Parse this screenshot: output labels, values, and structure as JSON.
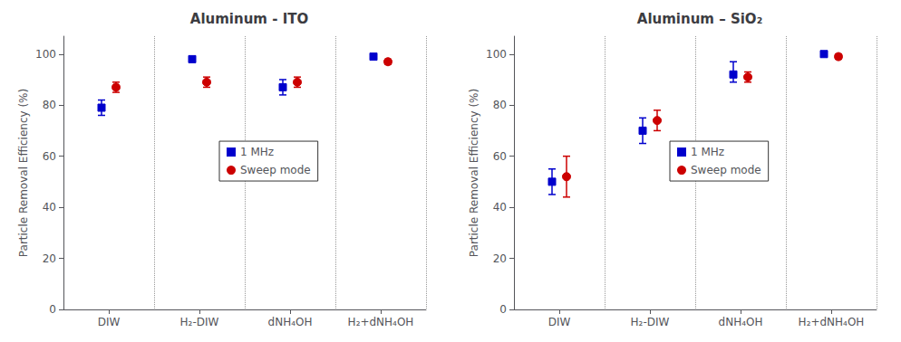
{
  "chart_data": [
    {
      "type": "scatter",
      "title": "Aluminum - ITO",
      "ylabel": "Particle Removal Efficiency (%)",
      "categories": [
        "DIW",
        "H₂-DIW",
        "dNH₄OH",
        "H₂+dNH₄OH"
      ],
      "series": [
        {
          "name": "1 MHz",
          "color": "#0000CC",
          "marker": "square",
          "values": [
            79,
            98,
            87,
            99
          ],
          "yerr_low": [
            3,
            1,
            3,
            0.5
          ],
          "yerr_high": [
            3,
            1,
            3,
            0.5
          ]
        },
        {
          "name": "Sweep mode",
          "color": "#CC0000",
          "marker": "circle",
          "values": [
            87,
            89,
            89,
            97
          ],
          "yerr_low": [
            2,
            2,
            2,
            1
          ],
          "yerr_high": [
            2,
            2,
            2,
            1
          ]
        }
      ],
      "ylim": [
        0,
        107
      ],
      "yticks": [
        0,
        20,
        40,
        60,
        80,
        100
      ],
      "grid": false,
      "legend": "center"
    },
    {
      "type": "scatter",
      "title": "Aluminum – SiO₂",
      "ylabel": "Particle Removal Efficiency (%)",
      "categories": [
        "DIW",
        "H₂-DIW",
        "dNH₄OH",
        "H₂+dNH₄OH"
      ],
      "series": [
        {
          "name": "1 MHz",
          "color": "#0000CC",
          "marker": "square",
          "values": [
            50,
            70,
            92,
            100
          ],
          "yerr_low": [
            5,
            5,
            3,
            0.5
          ],
          "yerr_high": [
            5,
            5,
            5,
            0.5
          ]
        },
        {
          "name": "Sweep mode",
          "color": "#CC0000",
          "marker": "circle",
          "values": [
            52,
            74,
            91,
            99
          ],
          "yerr_low": [
            8,
            4,
            2,
            1
          ],
          "yerr_high": [
            8,
            4,
            2,
            1
          ]
        }
      ],
      "ylim": [
        0,
        107
      ],
      "yticks": [
        0,
        20,
        40,
        60,
        80,
        100
      ],
      "grid": false,
      "legend": "center"
    }
  ]
}
